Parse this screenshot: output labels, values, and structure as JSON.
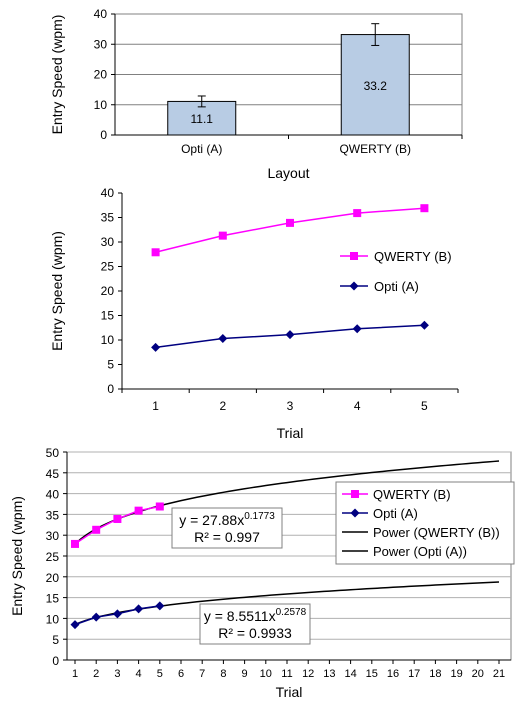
{
  "chart_data": [
    {
      "type": "bar",
      "categories": [
        "Opti (A)",
        "QWERTY (B)"
      ],
      "values": [
        11.1,
        33.2
      ],
      "error": [
        1.8,
        3.6
      ],
      "data_labels": [
        "11.1",
        "33.2"
      ],
      "xlabel": "Layout",
      "ylabel": "Entry Speed (wpm)",
      "ylim": [
        0,
        40
      ],
      "yticks": [
        0,
        10,
        20,
        30,
        40
      ],
      "bar_color": "#b8cce4",
      "grid": true
    },
    {
      "type": "line",
      "x": [
        1,
        2,
        3,
        4,
        5
      ],
      "series": [
        {
          "name": "QWERTY (B)",
          "values": [
            27.9,
            31.3,
            33.9,
            35.9,
            36.9
          ],
          "color": "#ff00ff",
          "marker": "square"
        },
        {
          "name": "Opti (A)",
          "values": [
            8.5,
            10.3,
            11.1,
            12.3,
            13.0
          ],
          "color": "#000080",
          "marker": "diamond"
        }
      ],
      "xlabel": "Trial",
      "ylabel": "Entry Speed (wpm)",
      "ylim": [
        0,
        40
      ],
      "yticks": [
        0,
        5,
        10,
        15,
        20,
        25,
        30,
        35,
        40
      ],
      "legend_position": "right"
    },
    {
      "type": "scatter",
      "x": [
        1,
        2,
        3,
        4,
        5
      ],
      "series": [
        {
          "name": "QWERTY (B)",
          "values": [
            27.9,
            31.3,
            33.9,
            35.9,
            36.9
          ],
          "color": "#ff00ff",
          "marker": "square"
        },
        {
          "name": "Opti (A)",
          "values": [
            8.5,
            10.3,
            11.1,
            12.3,
            13.0
          ],
          "color": "#000080",
          "marker": "diamond"
        }
      ],
      "trendlines": [
        {
          "name": "Power (QWERTY (B))",
          "type": "power",
          "a": 27.88,
          "b": 0.1773,
          "x_range": [
            1,
            21
          ],
          "color": "#000000"
        },
        {
          "name": "Power (Opti (A))",
          "type": "power",
          "a": 8.5511,
          "b": 0.2578,
          "x_range": [
            1,
            21
          ],
          "color": "#000000"
        }
      ],
      "equations": [
        {
          "prefix": "y = 27.88x",
          "exponent": "0.1773",
          "r2": "R² = 0.997"
        },
        {
          "prefix": "y = 8.5511x",
          "exponent": "0.2578",
          "r2": "R² = 0.9933"
        }
      ],
      "xlabel": "Trial",
      "ylabel": "Entry Speed (wpm)",
      "xticks": [
        1,
        2,
        3,
        4,
        5,
        6,
        7,
        8,
        9,
        10,
        11,
        12,
        13,
        14,
        15,
        16,
        17,
        18,
        19,
        20,
        21
      ],
      "xlim": [
        1,
        21
      ],
      "ylim": [
        0,
        50
      ],
      "yticks": [
        0,
        5,
        10,
        15,
        20,
        25,
        30,
        35,
        40,
        45,
        50
      ],
      "grid": true,
      "legend_position": "right"
    }
  ]
}
